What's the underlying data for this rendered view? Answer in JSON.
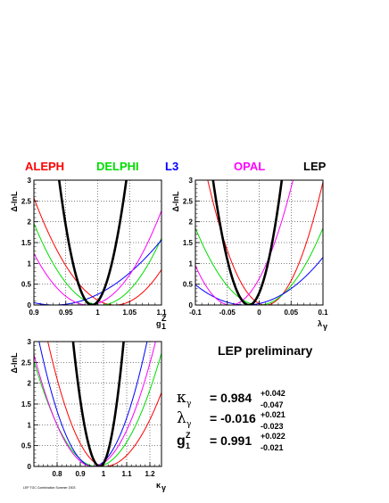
{
  "experiments": [
    {
      "name": "ALEPH",
      "color": "#ff0000"
    },
    {
      "name": "DELPHI",
      "color": "#00dd00"
    },
    {
      "name": "L3",
      "color": "#0000ff"
    },
    {
      "name": "OPAL",
      "color": "#ff00ff"
    },
    {
      "name": "LEP",
      "color": "#000000"
    }
  ],
  "preliminary_label": "LEP preliminary",
  "results": [
    {
      "symbol": "κ",
      "subscript": "γ",
      "superscript": "",
      "value": "= 0.984",
      "err_plus": "+0.042",
      "err_minus": "-0.047"
    },
    {
      "symbol": "λ",
      "subscript": "γ",
      "superscript": "",
      "value": "= -0.016",
      "err_plus": "+0.021",
      "err_minus": "-0.023"
    },
    {
      "symbol": "g",
      "subscript": "1",
      "superscript": "Z",
      "value": "= 0.991",
      "err_plus": "+0.022",
      "err_minus": "-0.021"
    }
  ],
  "footnote": "LEP TGC Combination Summer 2003",
  "chart_data": [
    {
      "type": "line",
      "ylabel": "Δ-lnL",
      "xlabel": "g",
      "xlabel_sub": "1",
      "xlabel_sup": "Z",
      "xlim": [
        0.9,
        1.1
      ],
      "ylim": [
        0,
        3
      ],
      "xticks": [
        "0.9",
        "0.95",
        "1",
        "1.05",
        "1.1"
      ],
      "xtick_values": [
        0.9,
        0.95,
        1.0,
        1.05,
        1.1
      ],
      "yticks": [
        "0",
        "0.5",
        "1",
        "1.5",
        "2",
        "2.5",
        "3"
      ],
      "ytick_values": [
        0,
        0.5,
        1,
        1.5,
        2,
        2.5,
        3
      ],
      "grid": true,
      "series": [
        {
          "name": "ALEPH",
          "color": "#ff0000",
          "min": 1.027,
          "w_left": 0.056,
          "w_right": 0.056
        },
        {
          "name": "DELPHI",
          "color": "#00dd00",
          "min": 1.005,
          "w_left": 0.053,
          "w_right": 0.053
        },
        {
          "name": "L3",
          "color": "#0000ff",
          "min": 0.932,
          "w_left": 0.095,
          "w_right": 0.095
        },
        {
          "name": "OPAL",
          "color": "#ff00ff",
          "min": 0.985,
          "w_left": 0.054,
          "w_right": 0.054
        },
        {
          "name": "LEP",
          "color": "#000000",
          "min": 0.991,
          "w_left": 0.021,
          "w_right": 0.022,
          "thick": true
        }
      ]
    },
    {
      "type": "line",
      "ylabel": "Δ-lnL",
      "xlabel": "λ",
      "xlabel_sub": "γ",
      "xlabel_sup": "",
      "xlim": [
        -0.1,
        0.1
      ],
      "ylim": [
        0,
        3
      ],
      "xticks": [
        "-0.1",
        "-0.05",
        "0",
        "0.05",
        "0.1"
      ],
      "xtick_values": [
        -0.1,
        -0.05,
        0,
        0.05,
        0.1
      ],
      "yticks": [
        "0",
        "0.5",
        "1",
        "1.5",
        "2",
        "2.5",
        "3"
      ],
      "ytick_values": [
        0,
        0.5,
        1,
        1.5,
        2,
        2.5,
        3
      ],
      "grid": true,
      "series": [
        {
          "name": "ALEPH",
          "color": "#ff0000",
          "min": 0.01,
          "w_left": 0.037,
          "w_right": 0.037
        },
        {
          "name": "DELPHI",
          "color": "#00dd00",
          "min": 0.0,
          "w_left": 0.052,
          "w_right": 0.052
        },
        {
          "name": "L3",
          "color": "#0000ff",
          "min": -0.021,
          "w_left": 0.08,
          "w_right": 0.08
        },
        {
          "name": "OPAL",
          "color": "#ff00ff",
          "min": -0.045,
          "w_left": 0.04,
          "w_right": 0.04
        },
        {
          "name": "LEP",
          "color": "#000000",
          "min": -0.016,
          "w_left": 0.023,
          "w_right": 0.021,
          "thick": true
        }
      ]
    },
    {
      "type": "line",
      "ylabel": "Δ-lnL",
      "xlabel": "κ",
      "xlabel_sub": "γ",
      "xlabel_sup": "",
      "xlim": [
        0.7,
        1.25
      ],
      "ylim": [
        0,
        3
      ],
      "xticks": [
        "0.8",
        "0.9",
        "1",
        "1.1",
        "1.2"
      ],
      "xtick_values": [
        0.8,
        0.9,
        1.0,
        1.1,
        1.2
      ],
      "yticks": [
        "0",
        "0.5",
        "1",
        "1.5",
        "2",
        "2.5",
        "3"
      ],
      "ytick_values": [
        0,
        0.5,
        1,
        1.5,
        2,
        2.5,
        3
      ],
      "grid": true,
      "series": [
        {
          "name": "ALEPH",
          "color": "#ff0000",
          "min": 1.005,
          "w_left": 0.1,
          "w_right": 0.13
        },
        {
          "name": "DELPHI",
          "color": "#00dd00",
          "min": 0.97,
          "w_left": 0.12,
          "w_right": 0.12
        },
        {
          "name": "L3",
          "color": "#0000ff",
          "min": 0.955,
          "w_left": 0.095,
          "w_right": 0.095
        },
        {
          "name": "OPAL",
          "color": "#ff00ff",
          "min": 0.955,
          "w_left": 0.11,
          "w_right": 0.11
        },
        {
          "name": "LEP",
          "color": "#000000",
          "min": 0.984,
          "w_left": 0.047,
          "w_right": 0.042,
          "thick": true
        }
      ]
    }
  ]
}
